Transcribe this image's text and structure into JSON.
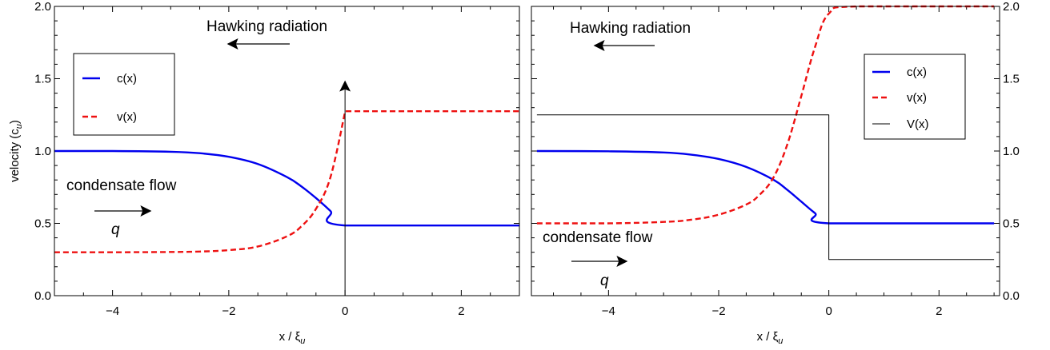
{
  "chart_data": [
    {
      "type": "line",
      "panel": "left",
      "xlabel": "x / ξ",
      "xlabel_sub": "u",
      "ylabel": "velocity (c",
      "ylabel_sub": "u",
      "ylabel_close": ")",
      "xlim": [
        -5,
        3
      ],
      "ylim": [
        0,
        2
      ],
      "xticks": [
        -4,
        -2,
        0,
        2
      ],
      "xtick_labels": [
        "−4",
        "−2",
        "0",
        "2"
      ],
      "yticks": [
        0,
        0.5,
        1,
        1.5,
        2
      ],
      "ytick_labels": [
        "0.0",
        "0.5",
        "1.0",
        "1.5",
        "2.0"
      ],
      "y_axis_side": "left",
      "legend_position": "upper-left",
      "series": [
        {
          "name": "c(x)",
          "style": "solid",
          "color": "#0000ee",
          "x": [
            -5,
            -4,
            -3,
            -2.5,
            -2,
            -1.5,
            -1,
            -0.75,
            -0.5,
            -0.25,
            0,
            3
          ],
          "y": [
            1.0,
            1.0,
            0.995,
            0.985,
            0.96,
            0.91,
            0.82,
            0.755,
            0.675,
            0.585,
            0.485,
            0.485
          ]
        },
        {
          "name": "v(x)",
          "style": "dashed",
          "color": "#ee1111",
          "x": [
            -5,
            -4,
            -3,
            -2.5,
            -2,
            -1.5,
            -1,
            -0.75,
            -0.5,
            -0.25,
            0,
            0.001,
            3
          ],
          "y": [
            0.3,
            0.3,
            0.302,
            0.305,
            0.315,
            0.34,
            0.41,
            0.48,
            0.6,
            0.82,
            1.27,
            1.275,
            1.275
          ]
        }
      ],
      "vline": {
        "x": 0,
        "arrow": "up"
      },
      "annotations": [
        {
          "text": "Hawking radiation",
          "arrow": "left"
        },
        {
          "text": "condensate flow",
          "arrow": "right"
        },
        {
          "text": "q"
        }
      ]
    },
    {
      "type": "line",
      "panel": "right",
      "xlabel": "x / ξ",
      "xlabel_sub": "u",
      "xlim": [
        -5.4,
        3.1
      ],
      "ylim": [
        0,
        2
      ],
      "xticks": [
        -4,
        -2,
        0,
        2
      ],
      "xtick_labels": [
        "−4",
        "−2",
        "0",
        "2"
      ],
      "yticks": [
        0,
        0.5,
        1,
        1.5,
        2
      ],
      "ytick_labels": [
        "0.0",
        "0.5",
        "1.0",
        "1.5",
        "2.0"
      ],
      "y_axis_side": "right",
      "legend_position": "upper-right",
      "series": [
        {
          "name": "c(x)",
          "style": "solid",
          "color": "#0000ee",
          "x": [
            -5.3,
            -4,
            -3,
            -2.5,
            -2,
            -1.5,
            -1,
            -0.75,
            -0.5,
            -0.25,
            0,
            3
          ],
          "y": [
            1.0,
            0.998,
            0.99,
            0.975,
            0.945,
            0.89,
            0.8,
            0.73,
            0.65,
            0.57,
            0.5,
            0.5
          ]
        },
        {
          "name": "v(x)",
          "style": "dashed",
          "color": "#ee1111",
          "x": [
            -5.3,
            -4,
            -3,
            -2.5,
            -2,
            -1.5,
            -1.25,
            -1,
            -0.75,
            -0.5,
            -0.25,
            0,
            0.5,
            3
          ],
          "y": [
            0.5,
            0.5,
            0.51,
            0.525,
            0.56,
            0.63,
            0.7,
            0.82,
            1.05,
            1.38,
            1.72,
            1.95,
            2.0,
            2.0
          ]
        },
        {
          "name": "V(x)",
          "style": "solid-thin",
          "color": "#000000",
          "x": [
            -5.3,
            0,
            0,
            3
          ],
          "y": [
            1.25,
            1.25,
            0.25,
            0.25
          ]
        }
      ],
      "annotations": [
        {
          "text": "Hawking radiation",
          "arrow": "left"
        },
        {
          "text": "condensate flow",
          "arrow": "right"
        },
        {
          "text": "q"
        }
      ]
    }
  ]
}
